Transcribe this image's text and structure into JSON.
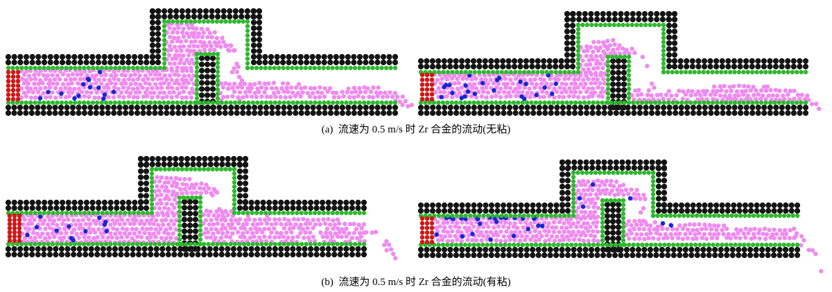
{
  "captions": {
    "a": "(a)  流速为 0.5 m/s 时 Zr 合金的流动(无粘)",
    "b": "(b)  流速为 0.5 m/s 时 Zr 合金的流动(有粘)"
  },
  "colors": {
    "wall": "#141414",
    "boundary": "#2fb82f",
    "inlet": "#cc1a1a",
    "fluid": "#ef8bef",
    "tracer": "#1428d0"
  }
}
